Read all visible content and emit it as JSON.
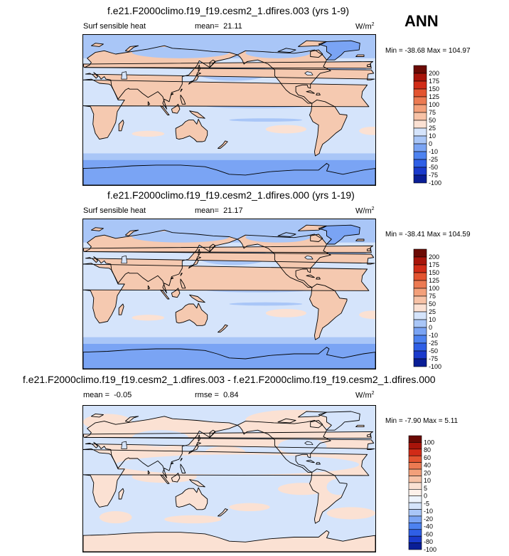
{
  "season_label": "ANN",
  "palettes": {
    "abs": [
      "#0a1e96",
      "#1a3acc",
      "#2f5fe6",
      "#4d82f0",
      "#7aa4f4",
      "#a9c6f7",
      "#d5e4fb",
      "#fbe1d3",
      "#f7c2a6",
      "#f3a07a",
      "#ec7a52",
      "#e35430",
      "#d12b17",
      "#a8140a",
      "#6b0a04"
    ],
    "diff": [
      "#0a1e96",
      "#1a3acc",
      "#2f5fe6",
      "#4d82f0",
      "#7aa4f4",
      "#a9c6f7",
      "#d5e4fb",
      "#eef4fd",
      "#fdf1ea",
      "#fbe1d3",
      "#f7c2a6",
      "#f3a07a",
      "#ec7a52",
      "#e35430",
      "#d12b17",
      "#a8140a",
      "#6b0a04"
    ],
    "land_warm": "#f5c9b0",
    "land_light": "#fbe1d3",
    "ocean": "#d5e4fb",
    "ocean_blue": "#a9c6f7",
    "south_blue": "#7aa4f4",
    "south_deep": "#4d82f0"
  },
  "panels": [
    {
      "title": "f.e21.F2000climo.f19_f19.cesm2_1.dfires.003 (yrs 1-9)",
      "left_label": "Surf sensible heat",
      "stat_label": "mean=",
      "stat_value": "21.11",
      "units_base": "W/m",
      "units_exp": "2",
      "minmax": "Min = -38.68 Max = 104.97",
      "levels": [
        "200",
        "175",
        "150",
        "125",
        "100",
        "75",
        "50",
        "25",
        "10",
        "0",
        "-10",
        "-25",
        "-50",
        "-75",
        "-100"
      ]
    },
    {
      "title": "f.e21.F2000climo.f19_f19.cesm2_1.dfires.000 (yrs 1-19)",
      "left_label": "Surf sensible heat",
      "stat_label": "mean=",
      "stat_value": "21.17",
      "units_base": "W/m",
      "units_exp": "2",
      "minmax": "Min = -38.41 Max = 104.59",
      "levels": [
        "200",
        "175",
        "150",
        "125",
        "100",
        "75",
        "50",
        "25",
        "10",
        "0",
        "-10",
        "-25",
        "-50",
        "-75",
        "-100"
      ]
    },
    {
      "title": "f.e21.F2000climo.f19_f19.cesm2_1.dfires.003 - f.e21.F2000climo.f19_f19.cesm2_1.dfires.000",
      "left_label": "mean =",
      "left_value": "-0.05",
      "stat_label": "rmse =",
      "stat_value": "0.84",
      "units_base": "W/m",
      "units_exp": "2",
      "minmax": "Min = -7.90 Max = 5.11",
      "levels": [
        "100",
        "80",
        "60",
        "40",
        "20",
        "10",
        "5",
        "0",
        "-5",
        "-10",
        "-20",
        "-40",
        "-60",
        "-80",
        "-100"
      ]
    }
  ],
  "chart_data": [
    {
      "type": "heatmap",
      "title": "f.e21.F2000climo.f19_f19.cesm2_1.dfires.003 (yrs 1-9)",
      "variable": "Surf sensible heat",
      "units": "W/m2",
      "mean": 21.11,
      "min": -38.68,
      "max": 104.97,
      "colorbar_levels": [
        -100,
        -75,
        -50,
        -25,
        -10,
        0,
        10,
        25,
        50,
        75,
        100,
        125,
        150,
        175,
        200
      ]
    },
    {
      "type": "heatmap",
      "title": "f.e21.F2000climo.f19_f19.cesm2_1.dfires.000 (yrs 1-19)",
      "variable": "Surf sensible heat",
      "units": "W/m2",
      "mean": 21.17,
      "min": -38.41,
      "max": 104.59,
      "colorbar_levels": [
        -100,
        -75,
        -50,
        -25,
        -10,
        0,
        10,
        25,
        50,
        75,
        100,
        125,
        150,
        175,
        200
      ]
    },
    {
      "type": "heatmap",
      "title": "f.e21.F2000climo.f19_f19.cesm2_1.dfires.003 - f.e21.F2000climo.f19_f19.cesm2_1.dfires.000",
      "units": "W/m2",
      "mean": -0.05,
      "rmse": 0.84,
      "min": -7.9,
      "max": 5.11,
      "colorbar_levels": [
        -100,
        -80,
        -60,
        -40,
        -20,
        -10,
        -5,
        0,
        5,
        10,
        20,
        40,
        60,
        80,
        100
      ]
    }
  ]
}
